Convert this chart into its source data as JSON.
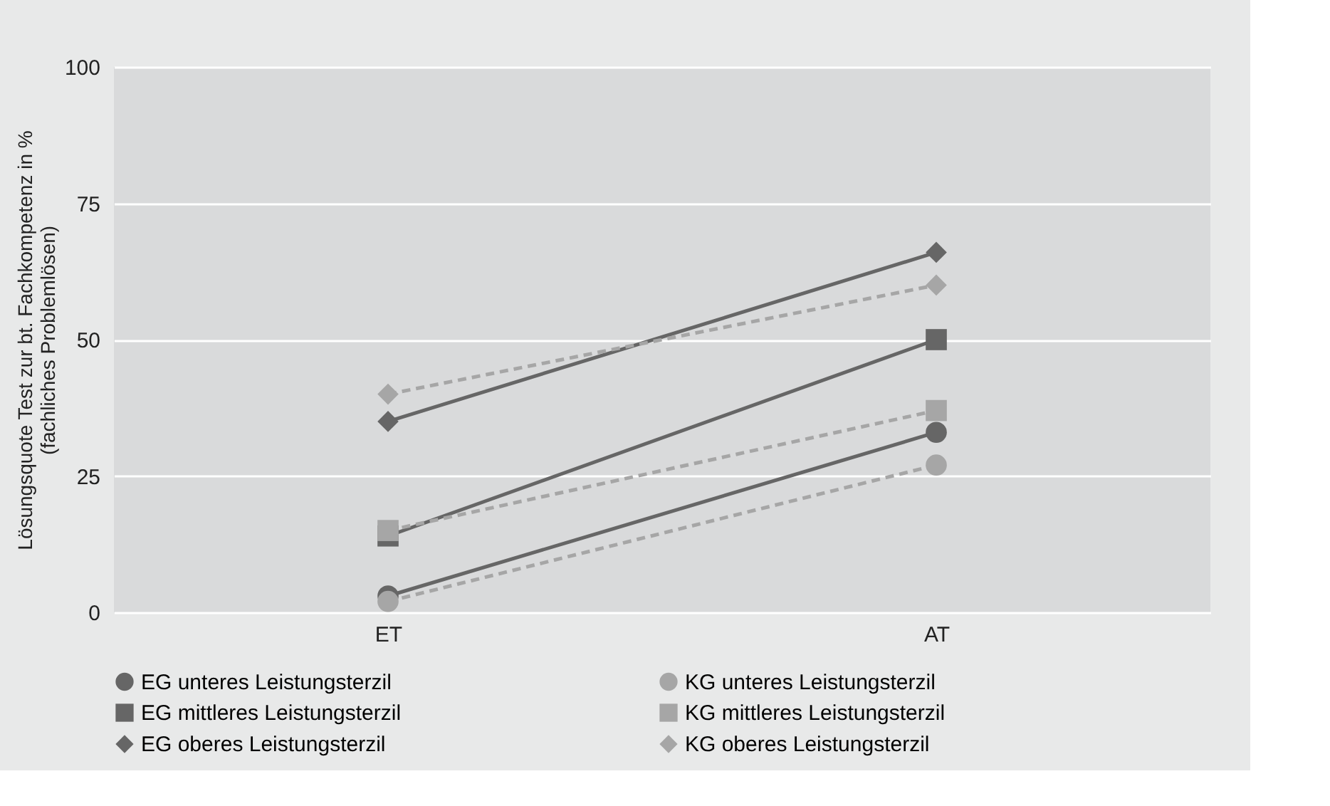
{
  "chart_data": {
    "type": "line",
    "ylabel": "Lösungsquote Test zur bt. Fachkompetenz in  %\n(fachliches Problemlösen)",
    "categories": [
      "ET",
      "AT"
    ],
    "ylim": [
      0,
      100
    ],
    "yticks": [
      0,
      25,
      50,
      75,
      100
    ],
    "grid": "y",
    "legend": "bottom",
    "series": [
      {
        "name": "EG unteres Leistungsterzil",
        "color": "#666666",
        "marker": "circle",
        "line_style": "solid",
        "values": [
          3,
          33
        ]
      },
      {
        "name": "EG mittleres Leistungsterzil",
        "color": "#666666",
        "marker": "square",
        "line_style": "solid",
        "values": [
          14,
          50
        ]
      },
      {
        "name": "EG oberes Leistungsterzil",
        "color": "#666666",
        "marker": "diamond",
        "line_style": "solid",
        "values": [
          35,
          66
        ]
      },
      {
        "name": "KG unteres Leistungsterzil",
        "color": "#a6a6a6",
        "marker": "circle",
        "line_style": "dashed",
        "values": [
          2,
          27
        ]
      },
      {
        "name": "KG mittleres Leistungsterzil",
        "color": "#a6a6a6",
        "marker": "square",
        "line_style": "dashed",
        "values": [
          15,
          37
        ]
      },
      {
        "name": "KG oberes Leistungsterzil",
        "color": "#a6a6a6",
        "marker": "diamond",
        "line_style": "dashed",
        "values": [
          40,
          60
        ]
      }
    ]
  }
}
